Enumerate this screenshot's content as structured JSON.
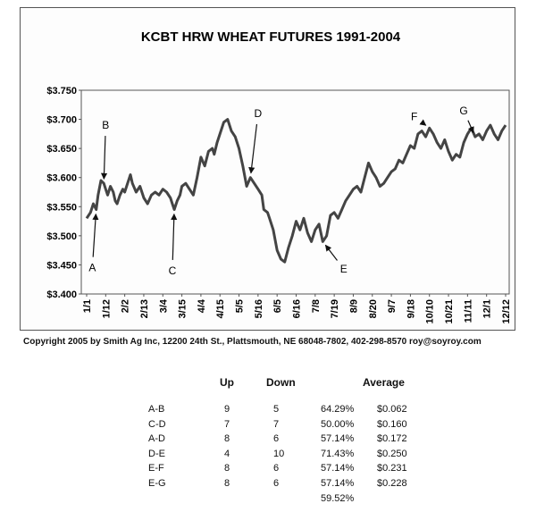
{
  "chart_data": {
    "type": "line",
    "title": "KCBT HRW WHEAT FUTURES 1991-2004",
    "xlabel": "",
    "ylabel": "",
    "ylim": [
      3.4,
      3.75
    ],
    "y_ticks": [
      "$3.400",
      "$3.450",
      "$3.500",
      "$3.550",
      "$3.600",
      "$3.650",
      "$3.700",
      "$3.750"
    ],
    "x_ticks": [
      "1/1",
      "1/12",
      "2/2",
      "2/13",
      "3/4",
      "3/15",
      "4/4",
      "4/15",
      "5/5",
      "5/16",
      "6/5",
      "6/16",
      "7/8",
      "7/19",
      "8/9",
      "8/20",
      "9/7",
      "9/18",
      "10/10",
      "10/21",
      "11/11",
      "12/1",
      "12/12"
    ],
    "grid": false,
    "series": [
      {
        "color": "#444444",
        "x": [
          0,
          0.2,
          0.35,
          0.5,
          0.6,
          0.75,
          0.9,
          1.0,
          1.1,
          1.25,
          1.4,
          1.5,
          1.6,
          1.75,
          1.9,
          2.0,
          2.15,
          2.3,
          2.4,
          2.6,
          2.8,
          3.0,
          3.2,
          3.4,
          3.6,
          3.8,
          4.0,
          4.2,
          4.4,
          4.5,
          4.6,
          4.75,
          4.9,
          5.0,
          5.2,
          5.4,
          5.6,
          5.8,
          6.0,
          6.2,
          6.4,
          6.6,
          6.7,
          6.85,
          7.0,
          7.2,
          7.4,
          7.6,
          7.8,
          8.0,
          8.2,
          8.4,
          8.6,
          8.8,
          9.0,
          9.2,
          9.3,
          9.5,
          9.6,
          9.8,
          10.0,
          10.2,
          10.4,
          10.6,
          10.8,
          11.0,
          11.2,
          11.4,
          11.6,
          11.8,
          12.0,
          12.2,
          12.4,
          12.6,
          12.8,
          13.0,
          13.2,
          13.4,
          13.6,
          13.8,
          14.0,
          14.2,
          14.4,
          14.6,
          14.8,
          15.0,
          15.2,
          15.4,
          15.6,
          15.8,
          16.0,
          16.2,
          16.4,
          16.6,
          16.8,
          17.0,
          17.2,
          17.4,
          17.6,
          17.8,
          18.0,
          18.2,
          18.4,
          18.6,
          18.8,
          19.0,
          19.2,
          19.4,
          19.6,
          19.8,
          20.0,
          20.2,
          20.4,
          20.6,
          20.8,
          21.0,
          21.2,
          21.4,
          21.6,
          21.8,
          22.0
        ],
        "values": [
          3.53,
          3.54,
          3.555,
          3.545,
          3.57,
          3.595,
          3.59,
          3.58,
          3.57,
          3.585,
          3.575,
          3.56,
          3.555,
          3.57,
          3.58,
          3.575,
          3.59,
          3.605,
          3.59,
          3.575,
          3.585,
          3.565,
          3.555,
          3.57,
          3.575,
          3.57,
          3.58,
          3.575,
          3.565,
          3.555,
          3.545,
          3.56,
          3.57,
          3.585,
          3.59,
          3.58,
          3.57,
          3.6,
          3.635,
          3.62,
          3.645,
          3.65,
          3.64,
          3.66,
          3.675,
          3.695,
          3.7,
          3.68,
          3.67,
          3.65,
          3.62,
          3.585,
          3.6,
          3.59,
          3.58,
          3.57,
          3.545,
          3.54,
          3.53,
          3.51,
          3.475,
          3.46,
          3.455,
          3.48,
          3.5,
          3.525,
          3.51,
          3.53,
          3.505,
          3.49,
          3.51,
          3.52,
          3.49,
          3.5,
          3.535,
          3.54,
          3.53,
          3.545,
          3.56,
          3.57,
          3.58,
          3.585,
          3.575,
          3.6,
          3.625,
          3.61,
          3.6,
          3.585,
          3.59,
          3.6,
          3.61,
          3.615,
          3.63,
          3.625,
          3.64,
          3.655,
          3.65,
          3.675,
          3.68,
          3.67,
          3.685,
          3.675,
          3.66,
          3.65,
          3.665,
          3.645,
          3.63,
          3.64,
          3.635,
          3.66,
          3.675,
          3.685,
          3.67,
          3.675,
          3.665,
          3.68,
          3.69,
          3.675,
          3.665,
          3.68,
          3.69
        ]
      }
    ],
    "annotations": [
      {
        "label": "A",
        "x": 0.3,
        "value": 3.445
      },
      {
        "label": "B",
        "x": 1.0,
        "value": 3.69
      },
      {
        "label": "C",
        "x": 4.5,
        "value": 3.44
      },
      {
        "label": "D",
        "x": 9.0,
        "value": 3.71
      },
      {
        "label": "E",
        "x": 13.5,
        "value": 3.443
      },
      {
        "label": "F",
        "x": 17.2,
        "value": 3.705
      },
      {
        "label": "G",
        "x": 19.8,
        "value": 3.715
      }
    ]
  },
  "copyright": "Copyright 2005 by Smith Ag Inc, 12200 24th St., Plattsmouth, NE 68048-7802, 402-298-8570 roy@soyroy.com",
  "stats": {
    "headers": {
      "up": "Up",
      "down": "Down",
      "average": "Average"
    },
    "rows": [
      {
        "label": "A-B",
        "up": "9",
        "down": "5",
        "pct": "64.29%",
        "avg": "$0.062"
      },
      {
        "label": "C-D",
        "up": "7",
        "down": "7",
        "pct": "50.00%",
        "avg": "$0.160"
      },
      {
        "label": "A-D",
        "up": "8",
        "down": "6",
        "pct": "57.14%",
        "avg": "$0.172"
      },
      {
        "label": "D-E",
        "up": "4",
        "down": "10",
        "pct": "71.43%",
        "avg": "$0.250"
      },
      {
        "label": "E-F",
        "up": "8",
        "down": "6",
        "pct": "57.14%",
        "avg": "$0.231"
      },
      {
        "label": "E-G",
        "up": "8",
        "down": "6",
        "pct": "57.14%",
        "avg": "$0.228"
      }
    ],
    "overall_pct": "59.52%"
  }
}
